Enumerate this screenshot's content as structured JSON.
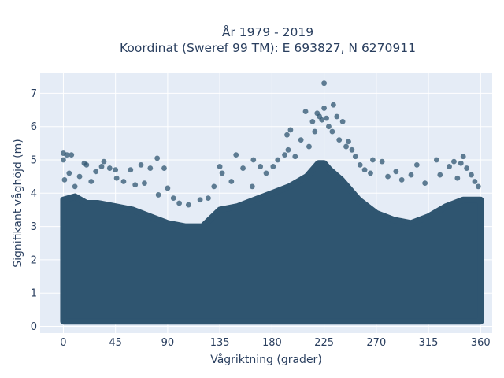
{
  "chart_data": {
    "type": "scatter",
    "title_line1": "År 1979 - 2019",
    "title_line2": "Koordinat (Sweref 99 TM): E 693827, N 6270911",
    "xlabel": "Vågriktning (grader)",
    "ylabel": "Signifikant våghöjd (m)",
    "xlim": [
      -20,
      370
    ],
    "ylim": [
      -0.2,
      7.6
    ],
    "xticks": [
      0,
      45,
      90,
      135,
      180,
      225,
      270,
      315,
      360
    ],
    "yticks": [
      0,
      1,
      2,
      3,
      4,
      5,
      6,
      7
    ],
    "grid": true,
    "legend": "none",
    "colors": {
      "marker": "#2f5570",
      "plot_bg": "#e5ecf6",
      "grid": "#ffffff",
      "text": "#2a3f5f"
    },
    "envelope": {
      "direction": [
        0,
        10,
        20,
        30,
        45,
        60,
        75,
        90,
        105,
        120,
        135,
        150,
        165,
        180,
        195,
        210,
        220,
        225,
        230,
        240,
        255,
        270,
        285,
        300,
        315,
        330,
        345,
        360
      ],
      "max_height": [
        3.8,
        3.9,
        3.7,
        3.7,
        3.6,
        3.5,
        3.3,
        3.1,
        3.0,
        3.0,
        3.5,
        3.6,
        3.8,
        4.0,
        4.2,
        4.5,
        4.9,
        4.9,
        4.7,
        4.4,
        3.8,
        3.4,
        3.2,
        3.1,
        3.3,
        3.6,
        3.8,
        3.8
      ]
    },
    "points": [
      {
        "x": 0,
        "y": 5.2
      },
      {
        "x": 3,
        "y": 5.15
      },
      {
        "x": 7,
        "y": 5.15
      },
      {
        "x": 0,
        "y": 5.0
      },
      {
        "x": 18,
        "y": 4.9
      },
      {
        "x": 20,
        "y": 4.85
      },
      {
        "x": 35,
        "y": 4.95
      },
      {
        "x": 33,
        "y": 4.8
      },
      {
        "x": 28,
        "y": 4.65
      },
      {
        "x": 40,
        "y": 4.75
      },
      {
        "x": 45,
        "y": 4.7
      },
      {
        "x": 58,
        "y": 4.7
      },
      {
        "x": 67,
        "y": 4.85
      },
      {
        "x": 75,
        "y": 4.75
      },
      {
        "x": 81,
        "y": 5.05
      },
      {
        "x": 87,
        "y": 4.75
      },
      {
        "x": 1,
        "y": 4.4
      },
      {
        "x": 10,
        "y": 4.2
      },
      {
        "x": 14,
        "y": 4.5
      },
      {
        "x": 46,
        "y": 4.45
      },
      {
        "x": 52,
        "y": 4.35
      },
      {
        "x": 62,
        "y": 4.25
      },
      {
        "x": 82,
        "y": 3.95
      },
      {
        "x": 90,
        "y": 4.15
      },
      {
        "x": 95,
        "y": 3.85
      },
      {
        "x": 100,
        "y": 3.7
      },
      {
        "x": 108,
        "y": 3.65
      },
      {
        "x": 118,
        "y": 3.8
      },
      {
        "x": 125,
        "y": 3.85
      },
      {
        "x": 135,
        "y": 4.8
      },
      {
        "x": 137,
        "y": 4.6
      },
      {
        "x": 130,
        "y": 4.2
      },
      {
        "x": 145,
        "y": 4.35
      },
      {
        "x": 149,
        "y": 5.15
      },
      {
        "x": 155,
        "y": 4.75
      },
      {
        "x": 163,
        "y": 4.2
      },
      {
        "x": 164,
        "y": 5.0
      },
      {
        "x": 170,
        "y": 4.8
      },
      {
        "x": 175,
        "y": 4.6
      },
      {
        "x": 181,
        "y": 4.8
      },
      {
        "x": 185,
        "y": 5.0
      },
      {
        "x": 191,
        "y": 5.15
      },
      {
        "x": 194,
        "y": 5.3
      },
      {
        "x": 196,
        "y": 5.9
      },
      {
        "x": 193,
        "y": 5.75
      },
      {
        "x": 200,
        "y": 5.1
      },
      {
        "x": 205,
        "y": 5.6
      },
      {
        "x": 209,
        "y": 6.45
      },
      {
        "x": 212,
        "y": 5.4
      },
      {
        "x": 215,
        "y": 6.15
      },
      {
        "x": 217,
        "y": 5.85
      },
      {
        "x": 219,
        "y": 6.4
      },
      {
        "x": 221,
        "y": 6.3
      },
      {
        "x": 223,
        "y": 6.2
      },
      {
        "x": 225,
        "y": 7.3
      },
      {
        "x": 225,
        "y": 6.55
      },
      {
        "x": 227,
        "y": 6.25
      },
      {
        "x": 229,
        "y": 6.0
      },
      {
        "x": 232,
        "y": 5.85
      },
      {
        "x": 233,
        "y": 6.65
      },
      {
        "x": 236,
        "y": 6.3
      },
      {
        "x": 238,
        "y": 5.6
      },
      {
        "x": 241,
        "y": 6.15
      },
      {
        "x": 244,
        "y": 5.4
      },
      {
        "x": 246,
        "y": 5.55
      },
      {
        "x": 249,
        "y": 5.3
      },
      {
        "x": 252,
        "y": 5.1
      },
      {
        "x": 256,
        "y": 4.85
      },
      {
        "x": 260,
        "y": 4.7
      },
      {
        "x": 265,
        "y": 4.6
      },
      {
        "x": 267,
        "y": 5.0
      },
      {
        "x": 275,
        "y": 4.95
      },
      {
        "x": 280,
        "y": 4.5
      },
      {
        "x": 287,
        "y": 4.65
      },
      {
        "x": 292,
        "y": 4.4
      },
      {
        "x": 300,
        "y": 4.55
      },
      {
        "x": 305,
        "y": 4.85
      },
      {
        "x": 312,
        "y": 4.3
      },
      {
        "x": 322,
        "y": 5.0
      },
      {
        "x": 325,
        "y": 4.55
      },
      {
        "x": 333,
        "y": 4.8
      },
      {
        "x": 337,
        "y": 4.95
      },
      {
        "x": 340,
        "y": 4.45
      },
      {
        "x": 343,
        "y": 4.9
      },
      {
        "x": 345,
        "y": 5.1
      },
      {
        "x": 348,
        "y": 4.75
      },
      {
        "x": 352,
        "y": 4.55
      },
      {
        "x": 355,
        "y": 4.35
      },
      {
        "x": 358,
        "y": 4.2
      },
      {
        "x": 5,
        "y": 4.6
      },
      {
        "x": 24,
        "y": 4.35
      },
      {
        "x": 70,
        "y": 4.3
      }
    ]
  }
}
